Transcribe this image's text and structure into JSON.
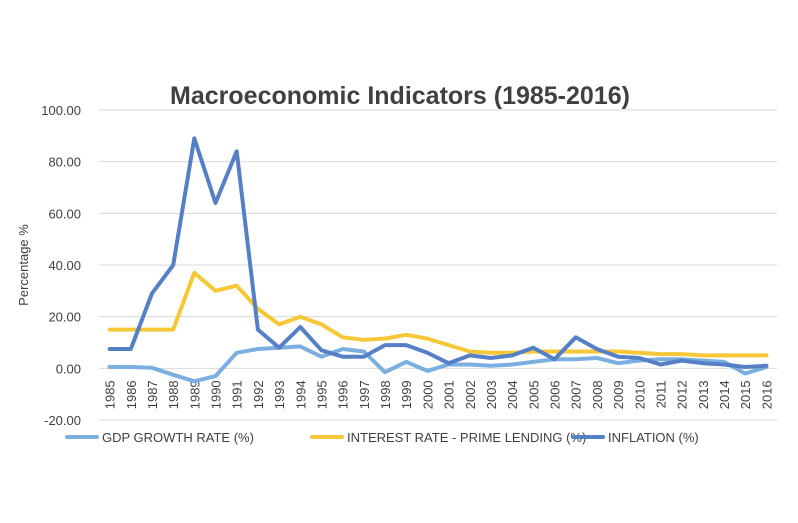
{
  "chart_data": {
    "type": "line",
    "title": "Macroeconomic Indicators (1985-2016)",
    "xlabel": "",
    "ylabel": "Percentage %",
    "ylim": [
      -20,
      100
    ],
    "yticks": [
      "100.00",
      "80.00",
      "60.00",
      "40.00",
      "20.00",
      "0.00",
      "-20.00"
    ],
    "ytick_values": [
      100,
      80,
      60,
      40,
      20,
      0,
      -20
    ],
    "grid": true,
    "legend_position": "bottom",
    "categories": [
      "1985",
      "1986",
      "1987",
      "1988",
      "1989",
      "1990",
      "1991",
      "1992",
      "1993",
      "1994",
      "1995",
      "1996",
      "1997",
      "1998",
      "1999",
      "2000",
      "2001",
      "2002",
      "2003",
      "2004",
      "2005",
      "2006",
      "2007",
      "2008",
      "2009",
      "2010",
      "2011",
      "2012",
      "2013",
      "2014",
      "2015",
      "2016"
    ],
    "series": [
      {
        "name": "GDP GROWTH RATE (%)",
        "color": "#7bafe0",
        "values": [
          0.5,
          0.5,
          0.2,
          -2.5,
          -5.0,
          -3.0,
          6.0,
          7.5,
          8.0,
          8.5,
          4.5,
          7.5,
          6.5,
          -1.5,
          2.5,
          -1.0,
          1.5,
          1.5,
          1.0,
          1.5,
          2.5,
          3.5,
          3.5,
          4.0,
          2.0,
          3.0,
          3.5,
          3.5,
          3.0,
          2.5,
          -2.0,
          0.5
        ]
      },
      {
        "name": "INTEREST RATE - PRIME LENDING (%)",
        "color": "#f6c838",
        "values": [
          15.0,
          15.0,
          15.0,
          15.0,
          37.0,
          30.0,
          32.0,
          23.0,
          17.0,
          20.0,
          17.0,
          12.0,
          11.0,
          11.5,
          13.0,
          11.5,
          9.0,
          6.5,
          6.0,
          6.0,
          6.5,
          6.5,
          6.5,
          6.5,
          6.5,
          6.0,
          5.5,
          5.5,
          5.0,
          5.0,
          5.0,
          5.0
        ]
      },
      {
        "name": "INFLATION (%)",
        "color": "#5680c6",
        "values": [
          7.5,
          7.5,
          29.0,
          40.0,
          89.0,
          64.0,
          84.0,
          15.0,
          8.0,
          16.0,
          7.0,
          4.5,
          4.5,
          9.0,
          9.0,
          6.0,
          2.0,
          5.0,
          4.0,
          5.0,
          8.0,
          3.5,
          12.0,
          7.5,
          4.5,
          4.0,
          1.5,
          3.0,
          2.0,
          1.5,
          0.5,
          1.0
        ]
      }
    ]
  }
}
